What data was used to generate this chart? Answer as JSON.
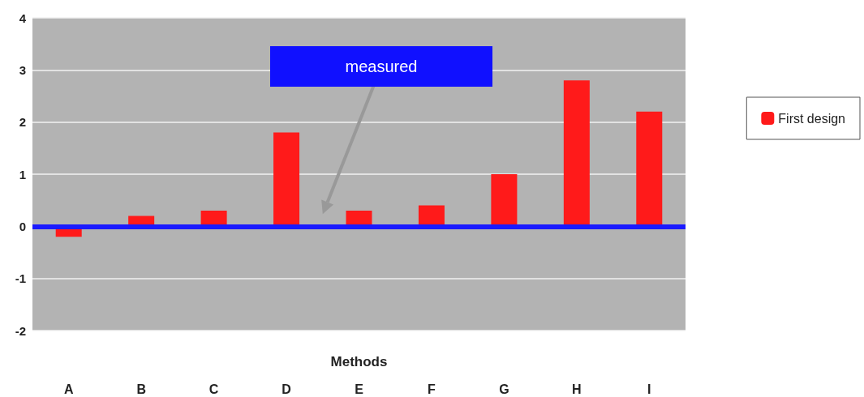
{
  "chart_data": {
    "type": "bar",
    "xlabel": "Methods",
    "categories": [
      "A",
      "B",
      "C",
      "D",
      "E",
      "F",
      "G",
      "H",
      "I"
    ],
    "series": [
      {
        "name": "First design",
        "color": "#ff1a1a",
        "values": [
          -0.2,
          0.2,
          0.3,
          1.8,
          0.3,
          0.4,
          1.0,
          2.8,
          2.2
        ]
      }
    ],
    "ylim": [
      -2,
      4
    ],
    "yticks": [
      -2,
      -1,
      0,
      1,
      2,
      3,
      4
    ],
    "grid": "y",
    "legend": "right",
    "ref_lines": [
      {
        "axis": "y",
        "value": 0,
        "color": "#1a1aff"
      }
    ],
    "annotations": [
      "measured"
    ]
  }
}
